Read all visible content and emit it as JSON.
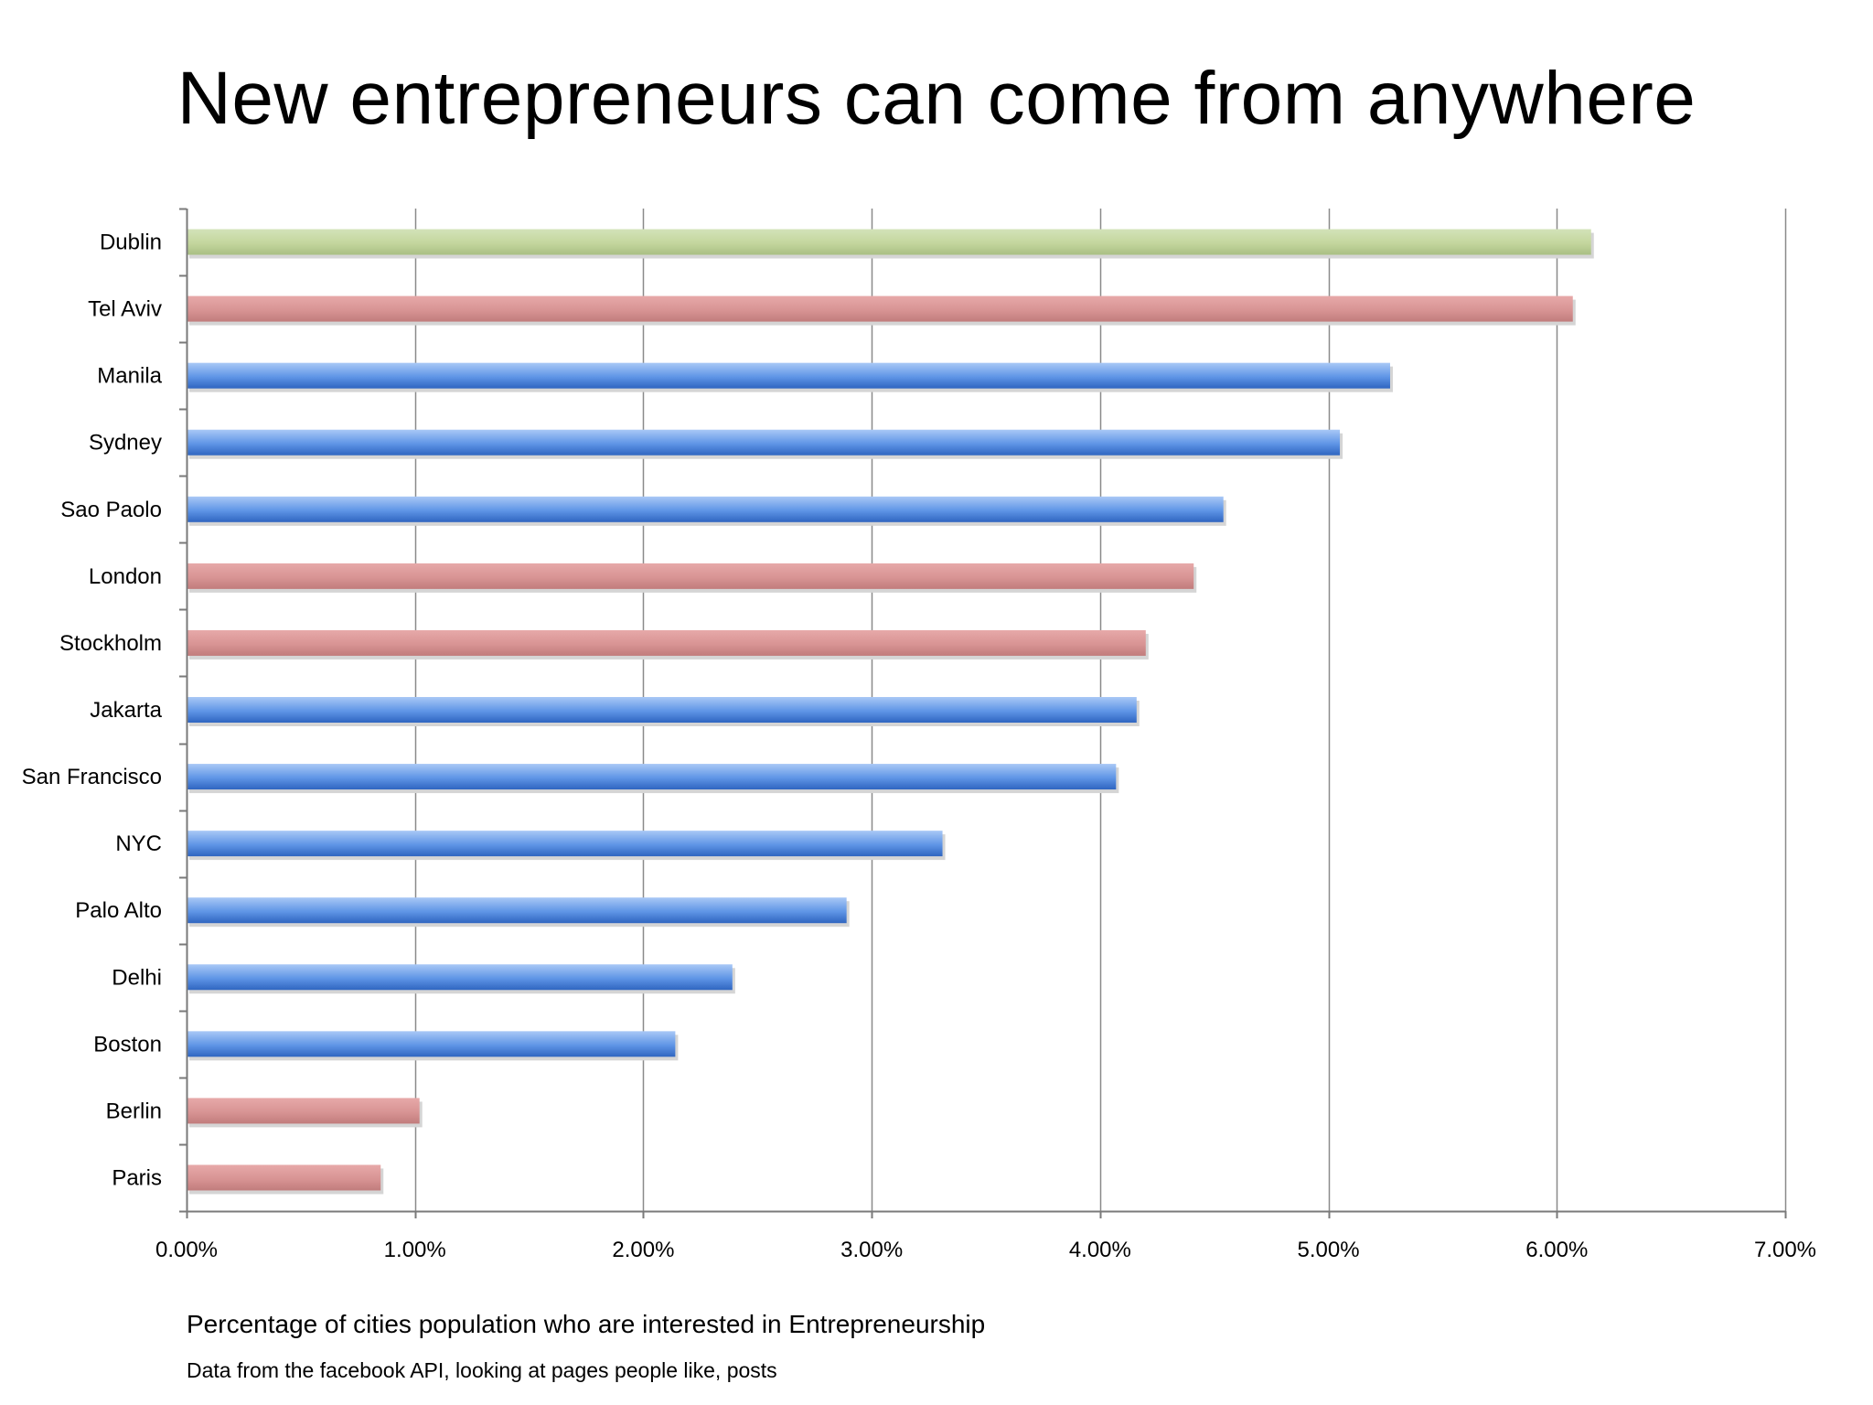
{
  "chart_data": {
    "type": "bar",
    "orientation": "horizontal",
    "title": "New entrepreneurs can come from anywhere",
    "categories": [
      "Dublin",
      "Tel Aviv",
      "Manila",
      "Sydney",
      "Sao Paolo",
      "London",
      "Stockholm",
      "Jakarta",
      "San Francisco",
      "NYC",
      "Palo Alto",
      "Delhi",
      "Boston",
      "Berlin",
      "Paris"
    ],
    "values": [
      0.0615,
      0.0607,
      0.0527,
      0.0505,
      0.0454,
      0.0441,
      0.042,
      0.0416,
      0.0407,
      0.0331,
      0.0289,
      0.0239,
      0.0214,
      0.0102,
      0.0085
    ],
    "bar_colors": [
      "green",
      "red",
      "blue",
      "blue",
      "blue",
      "red",
      "red",
      "blue",
      "blue",
      "blue",
      "blue",
      "blue",
      "blue",
      "red",
      "red"
    ],
    "xlim": [
      0,
      0.07
    ],
    "x_ticks": [
      0,
      0.01,
      0.02,
      0.03,
      0.04,
      0.05,
      0.06,
      0.07
    ],
    "x_tick_labels": [
      "0.00%",
      "1.00%",
      "2.00%",
      "3.00%",
      "4.00%",
      "5.00%",
      "6.00%",
      "7.00%"
    ],
    "grid": "vertical gridlines at every x tick",
    "legend": "none",
    "xlabel": "",
    "ylabel": "",
    "notes": [
      "Percentage of cities population who are interested in Entrepreneurship",
      "Data from the facebook API, looking at pages people like, posts"
    ]
  },
  "colors": {
    "green": {
      "light": "#d3e3b9",
      "base": "#c4d69d",
      "dark": "#a9bf84"
    },
    "red": {
      "light": "#e7a9a9",
      "base": "#d89494",
      "dark": "#c17c7c"
    },
    "blue": {
      "light": "#a9c8f6",
      "base": "#5f95e6",
      "dark": "#2f65c0"
    },
    "gridline": "#8a8a8a",
    "axis": "#7a7a7a",
    "shadow": "#d5d5d5"
  }
}
